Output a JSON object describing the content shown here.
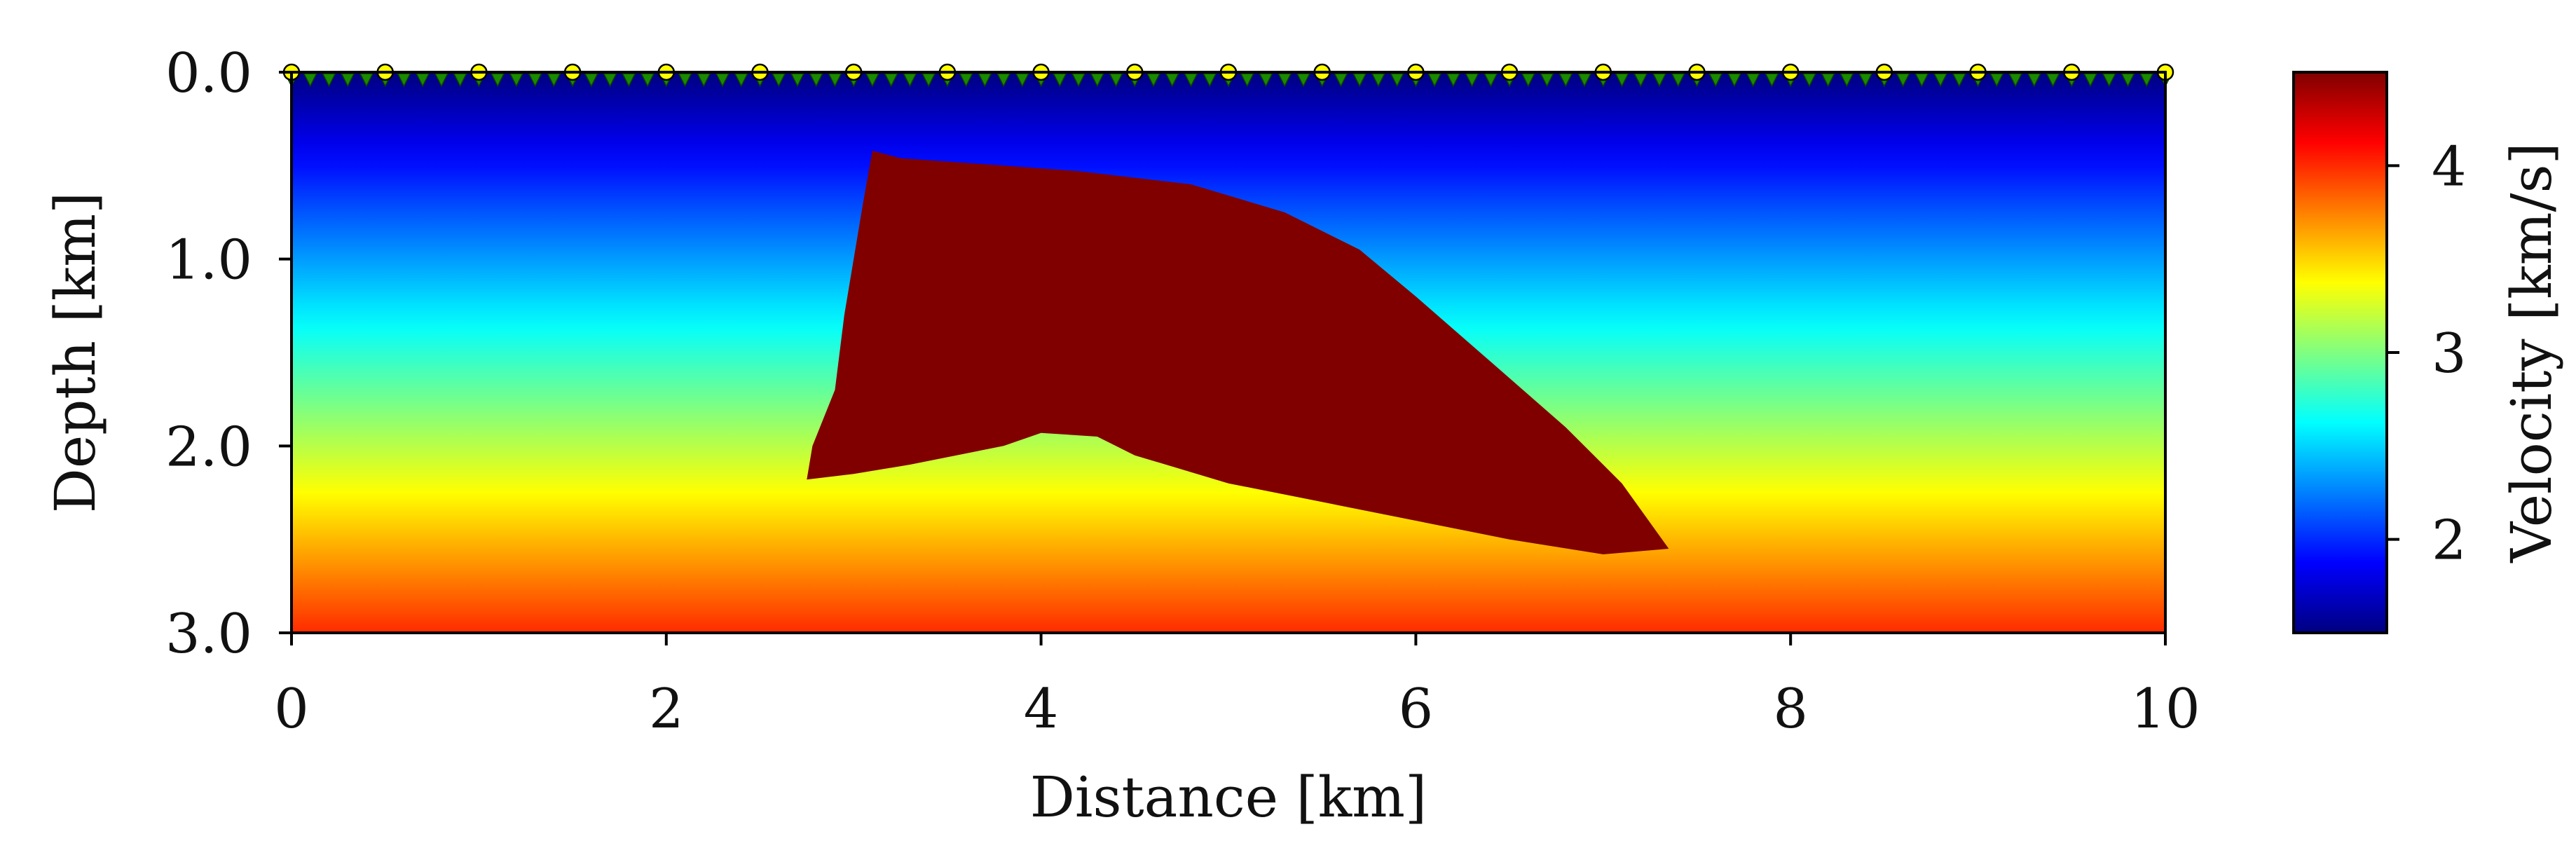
{
  "chart_data": {
    "type": "heatmap",
    "xlabel": "Distance [km]",
    "ylabel": "Depth [km]",
    "xlim": [
      0,
      10
    ],
    "ylim": [
      3.0,
      0.0
    ],
    "x_ticks": [
      0,
      2,
      4,
      6,
      8,
      10
    ],
    "x_tick_labels": [
      "0",
      "2",
      "4",
      "6",
      "8",
      "10"
    ],
    "y_ticks": [
      0.0,
      1.0,
      2.0,
      3.0
    ],
    "y_tick_labels": [
      "0.0",
      "1.0",
      "2.0",
      "3.0"
    ],
    "grid": false,
    "colormap": "jet",
    "colorbar": {
      "label": "Velocity [km/s]",
      "vmin": 1.5,
      "vmax": 4.5,
      "ticks": [
        2,
        3,
        4
      ],
      "tick_labels": [
        "2",
        "3",
        "4"
      ]
    },
    "background_velocity_profile": {
      "depth_km": [
        0.0,
        3.0
      ],
      "velocity_km_s": [
        1.5,
        4.0
      ]
    },
    "salt_body": {
      "velocity_km_s": 4.5,
      "outline_distance_depth_km": [
        [
          3.1,
          0.42
        ],
        [
          3.25,
          0.46
        ],
        [
          3.8,
          0.5
        ],
        [
          4.2,
          0.53
        ],
        [
          4.8,
          0.6
        ],
        [
          5.3,
          0.75
        ],
        [
          5.7,
          0.95
        ],
        [
          6.0,
          1.2
        ],
        [
          6.4,
          1.55
        ],
        [
          6.8,
          1.9
        ],
        [
          7.1,
          2.2
        ],
        [
          7.35,
          2.55
        ],
        [
          7.0,
          2.58
        ],
        [
          6.5,
          2.5
        ],
        [
          6.0,
          2.4
        ],
        [
          5.5,
          2.3
        ],
        [
          5.0,
          2.2
        ],
        [
          4.5,
          2.05
        ],
        [
          4.3,
          1.95
        ],
        [
          4.0,
          1.93
        ],
        [
          3.8,
          2.0
        ],
        [
          3.3,
          2.1
        ],
        [
          3.0,
          2.15
        ],
        [
          2.75,
          2.18
        ],
        [
          2.78,
          2.0
        ],
        [
          2.9,
          1.7
        ],
        [
          2.95,
          1.3
        ],
        [
          3.0,
          1.0
        ],
        [
          3.05,
          0.7
        ]
      ]
    },
    "sources": {
      "depth_km": 0.0,
      "x_km": [
        0,
        0.5,
        1.0,
        1.5,
        2.0,
        2.5,
        3.0,
        3.5,
        4.0,
        4.5,
        5.0,
        5.5,
        6.0,
        6.5,
        7.0,
        7.5,
        8.0,
        8.5,
        9.0,
        9.5,
        10.0
      ],
      "color": "#ffff00"
    },
    "receivers": {
      "depth_km": 0.0,
      "x_start_km": 0.0,
      "x_end_km": 10.0,
      "count": 101,
      "color": "#1a8a00"
    }
  }
}
